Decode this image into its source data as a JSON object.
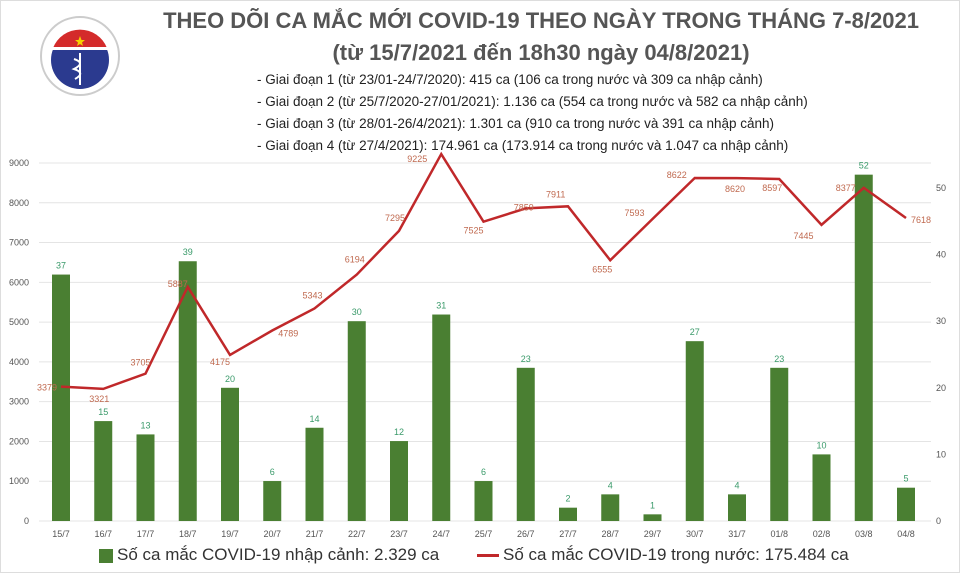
{
  "header": {
    "logo_text": "BỘ Y TẾ - MINISTRY OF HEALTH",
    "title_line1": "THEO DÕI CA MẮC MỚI COVID-19 THEO NGÀY TRONG THÁNG 7-8/2021",
    "title_line2": "(từ 15/7/2021 đến 18h30 ngày 04/8/2021)",
    "notes": [
      "- Giai đoạn 1 (từ 23/01-24/7/2020): 415 ca (106 ca trong nước và 309 ca nhập cảnh)",
      "- Giai đoạn 2 (từ 25/7/2020-27/01/2021): 1.136 ca (554 ca trong nước và 582 ca nhập cảnh)",
      "- Giai đoạn 3 (từ 28/01-26/4/2021): 1.301 ca (910 ca trong nước và 391 ca nhập cảnh)",
      "- Giai đoạn 4 (từ 27/4/2021): 174.961 ca (173.914 ca trong nước và 1.047 ca nhập cảnh)"
    ]
  },
  "chart_data": {
    "type": "bar+line",
    "categories": [
      "15/7",
      "16/7",
      "17/7",
      "18/7",
      "19/7",
      "20/7",
      "21/7",
      "22/7",
      "23/7",
      "24/7",
      "25/7",
      "26/7",
      "27/7",
      "28/7",
      "29/7",
      "30/7",
      "31/7",
      "01/8",
      "02/8",
      "03/8",
      "04/8"
    ],
    "series": [
      {
        "name": "Số ca mắc COVID-19 nhập cảnh: 2.329 ca",
        "type": "bar",
        "axis": "right",
        "color": "#4a7f32",
        "label_color": "#3a9a6a",
        "values": [
          37,
          15,
          13,
          39,
          20,
          6,
          14,
          30,
          12,
          31,
          6,
          23,
          2,
          4,
          1,
          27,
          4,
          23,
          10,
          52,
          5
        ]
      },
      {
        "name": "Số ca mắc COVID-19 trong nước: 175.484 ca",
        "type": "line",
        "axis": "left",
        "color": "#c0282a",
        "label_color": "#c06a50",
        "values": [
          3379,
          3321,
          3705,
          5887,
          4175,
          4789,
          5343,
          6194,
          7295,
          9225,
          7525,
          7859,
          7911,
          6555,
          7593,
          8622,
          8620,
          8597,
          7445,
          8377,
          7618
        ]
      }
    ],
    "left_axis": {
      "min": 0,
      "max": 9000,
      "ticks": [
        0,
        1000,
        2000,
        3000,
        4000,
        5000,
        6000,
        7000,
        8000,
        9000
      ]
    },
    "right_axis": {
      "min": 0,
      "max": 53.75,
      "ticks": [
        0,
        10,
        20,
        30,
        40,
        50
      ]
    },
    "grid": true,
    "legend": "bottom"
  }
}
